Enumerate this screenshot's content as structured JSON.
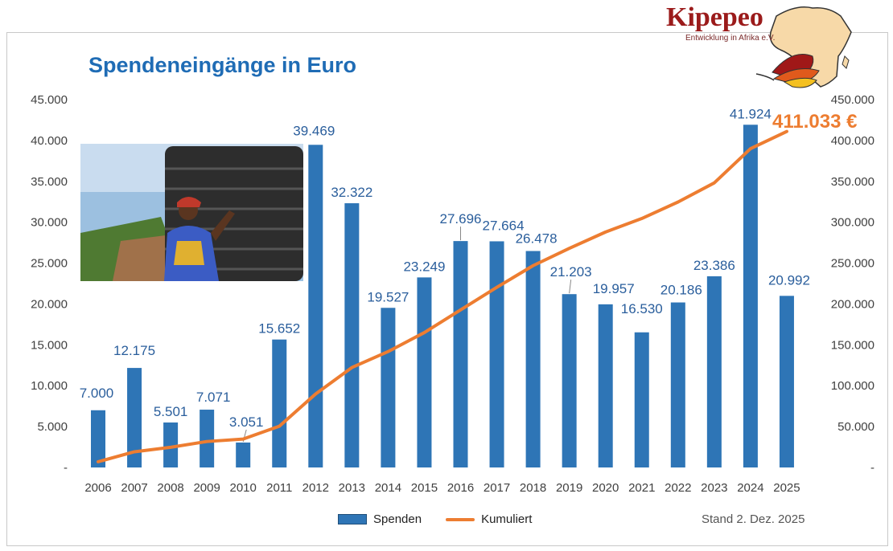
{
  "chart_data": {
    "type": "bar+line",
    "title": "Spendeneingänge in Euro",
    "categories": [
      "2006",
      "2007",
      "2008",
      "2009",
      "2010",
      "2011",
      "2012",
      "2013",
      "2014",
      "2015",
      "2016",
      "2017",
      "2018",
      "2019",
      "2020",
      "2021",
      "2022",
      "2023",
      "2024",
      "2025"
    ],
    "series": [
      {
        "name": "Spenden",
        "type": "bar",
        "axis": "left",
        "color": "#2e75b6",
        "values": [
          7000,
          12175,
          5501,
          7071,
          3051,
          15652,
          39469,
          32322,
          19527,
          23249,
          27696,
          27664,
          26478,
          21203,
          19957,
          16530,
          20186,
          23386,
          41924,
          20992
        ],
        "labels": [
          "7.000",
          "12.175",
          "5.501",
          "7.071",
          "3.051",
          "15.652",
          "39.469",
          "32.322",
          "19.527",
          "23.249",
          "27.696",
          "27.664",
          "26.478",
          "21.203",
          "19.957",
          "16.530",
          "20.186",
          "23.386",
          "41.924",
          "20.992"
        ]
      },
      {
        "name": "Kumuliert",
        "type": "line",
        "axis": "right",
        "color": "#ed7d31",
        "values": [
          7000,
          19175,
          24676,
          31747,
          34798,
          50450,
          89919,
          122241,
          141768,
          165017,
          192713,
          220377,
          246855,
          268058,
          288015,
          304545,
          324731,
          348117,
          390041,
          411033
        ]
      }
    ],
    "total_label": "411.033 €",
    "left_axis": {
      "range": [
        0,
        45000
      ],
      "ticks": [
        "-",
        "5.000",
        "10.000",
        "15.000",
        "20.000",
        "25.000",
        "30.000",
        "35.000",
        "40.000",
        "45.000"
      ]
    },
    "right_axis": {
      "range": [
        0,
        450000
      ],
      "ticks": [
        "-",
        "50.000",
        "100.000",
        "150.000",
        "200.000",
        "250.000",
        "300.000",
        "350.000",
        "400.000",
        "450.000"
      ]
    },
    "grid": false,
    "legend": "bottom"
  },
  "legend": {
    "bar": "Spenden",
    "line": "Kumuliert"
  },
  "stand": "Stand 2. Dez. 2025",
  "logo": {
    "name": "Kipepeo",
    "tagline": "Entwicklung in Afrika e.V."
  }
}
